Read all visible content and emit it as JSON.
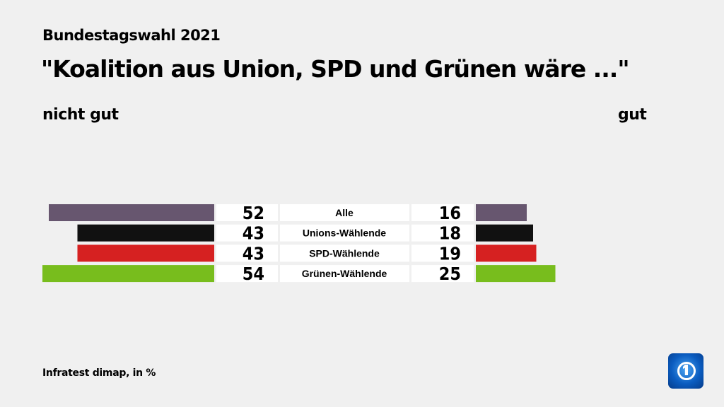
{
  "header": {
    "supertitle": "Bundestagswahl 2021",
    "title": "\"Koalition aus Union, SPD und Grünen wäre ...\""
  },
  "footer": {
    "source": "Infratest dimap, in %"
  },
  "logo": {
    "name": "tagesschau-logo-icon"
  },
  "chart_data": {
    "type": "bar",
    "orientation": "diverging-horizontal",
    "left_label": "nicht gut",
    "right_label": "gut",
    "categories": [
      "Alle",
      "Unions-Wählende",
      "SPD-Wählende",
      "Grünen-Wählende"
    ],
    "series": [
      {
        "name": "nicht gut",
        "values": [
          52,
          43,
          43,
          54
        ]
      },
      {
        "name": "gut",
        "values": [
          16,
          18,
          19,
          25
        ]
      }
    ],
    "colors": [
      "#67566f",
      "#111111",
      "#d62121",
      "#78bd1d"
    ],
    "unit": "%"
  }
}
